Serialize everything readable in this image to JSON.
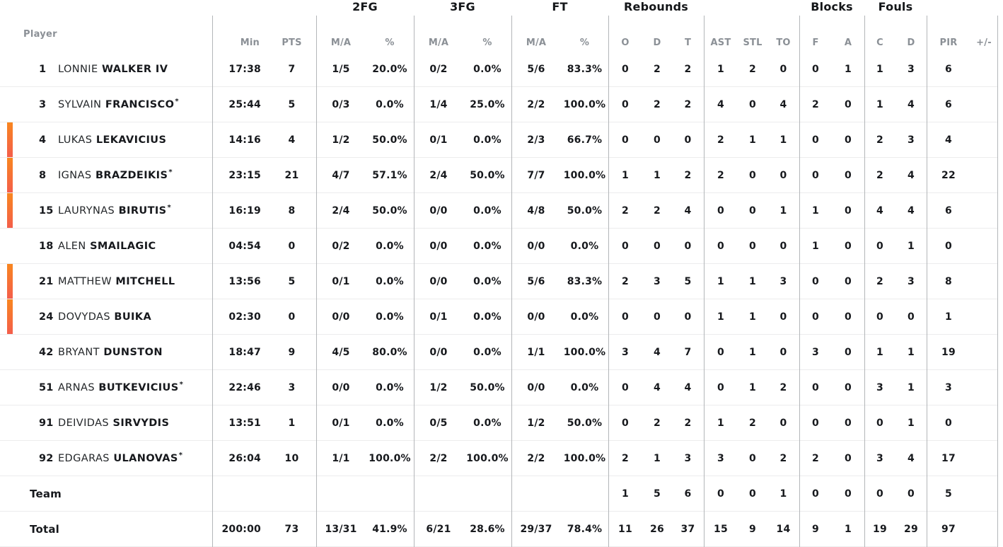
{
  "colors": {
    "accent_bar_top": "#f8861f",
    "accent_bar_bottom": "#f45e4b",
    "text_dark": "#17191d",
    "text_gray": "#8b9096",
    "divider_vertical": "#b3b6b9",
    "divider_horizontal": "#ececed"
  },
  "header": {
    "player_label": "Player",
    "groups": [
      {
        "label": "2FG"
      },
      {
        "label": "3FG"
      },
      {
        "label": "FT"
      },
      {
        "label": "Rebounds"
      },
      {
        "label": "Blocks"
      },
      {
        "label": "Fouls"
      }
    ],
    "stat_columns": [
      "Min",
      "PTS",
      "M/A",
      "%",
      "M/A",
      "%",
      "M/A",
      "%",
      "O",
      "D",
      "T",
      "AST",
      "STL",
      "TO",
      "F",
      "A",
      "C",
      "D",
      "PIR",
      "+/-"
    ]
  },
  "starter_marker": "*",
  "players": [
    {
      "number": "1",
      "first_name": "LONNIE",
      "last_name": "WALKER IV",
      "starter": false,
      "on_court": false,
      "stats": [
        "17:38",
        "7",
        "1/5",
        "20.0%",
        "0/2",
        "0.0%",
        "5/6",
        "83.3%",
        "0",
        "2",
        "2",
        "1",
        "2",
        "0",
        "0",
        "1",
        "1",
        "3",
        "6",
        ""
      ]
    },
    {
      "number": "3",
      "first_name": "SYLVAIN",
      "last_name": "FRANCISCO",
      "starter": true,
      "on_court": false,
      "stats": [
        "25:44",
        "5",
        "0/3",
        "0.0%",
        "1/4",
        "25.0%",
        "2/2",
        "100.0%",
        "0",
        "2",
        "2",
        "4",
        "0",
        "4",
        "2",
        "0",
        "1",
        "4",
        "6",
        ""
      ]
    },
    {
      "number": "4",
      "first_name": "LUKAS",
      "last_name": "LEKAVICIUS",
      "starter": false,
      "on_court": true,
      "stats": [
        "14:16",
        "4",
        "1/2",
        "50.0%",
        "0/1",
        "0.0%",
        "2/3",
        "66.7%",
        "0",
        "0",
        "0",
        "2",
        "1",
        "1",
        "0",
        "0",
        "2",
        "3",
        "4",
        ""
      ]
    },
    {
      "number": "8",
      "first_name": "IGNAS",
      "last_name": "BRAZDEIKIS",
      "starter": true,
      "on_court": true,
      "stats": [
        "23:15",
        "21",
        "4/7",
        "57.1%",
        "2/4",
        "50.0%",
        "7/7",
        "100.0%",
        "1",
        "1",
        "2",
        "2",
        "0",
        "0",
        "0",
        "0",
        "2",
        "4",
        "22",
        ""
      ]
    },
    {
      "number": "15",
      "first_name": "LAURYNAS",
      "last_name": "BIRUTIS",
      "starter": true,
      "on_court": true,
      "stats": [
        "16:19",
        "8",
        "2/4",
        "50.0%",
        "0/0",
        "0.0%",
        "4/8",
        "50.0%",
        "2",
        "2",
        "4",
        "0",
        "0",
        "1",
        "1",
        "0",
        "4",
        "4",
        "6",
        ""
      ]
    },
    {
      "number": "18",
      "first_name": "ALEN",
      "last_name": "SMAILAGIC",
      "starter": false,
      "on_court": false,
      "stats": [
        "04:54",
        "0",
        "0/2",
        "0.0%",
        "0/0",
        "0.0%",
        "0/0",
        "0.0%",
        "0",
        "0",
        "0",
        "0",
        "0",
        "0",
        "1",
        "0",
        "0",
        "1",
        "0",
        ""
      ]
    },
    {
      "number": "21",
      "first_name": "MATTHEW",
      "last_name": "MITCHELL",
      "starter": false,
      "on_court": true,
      "stats": [
        "13:56",
        "5",
        "0/1",
        "0.0%",
        "0/0",
        "0.0%",
        "5/6",
        "83.3%",
        "2",
        "3",
        "5",
        "1",
        "1",
        "3",
        "0",
        "0",
        "2",
        "3",
        "8",
        ""
      ]
    },
    {
      "number": "24",
      "first_name": "DOVYDAS",
      "last_name": "BUIKA",
      "starter": false,
      "on_court": true,
      "stats": [
        "02:30",
        "0",
        "0/0",
        "0.0%",
        "0/1",
        "0.0%",
        "0/0",
        "0.0%",
        "0",
        "0",
        "0",
        "1",
        "1",
        "0",
        "0",
        "0",
        "0",
        "0",
        "1",
        ""
      ]
    },
    {
      "number": "42",
      "first_name": "BRYANT",
      "last_name": "DUNSTON",
      "starter": false,
      "on_court": false,
      "stats": [
        "18:47",
        "9",
        "4/5",
        "80.0%",
        "0/0",
        "0.0%",
        "1/1",
        "100.0%",
        "3",
        "4",
        "7",
        "0",
        "1",
        "0",
        "3",
        "0",
        "1",
        "1",
        "19",
        ""
      ]
    },
    {
      "number": "51",
      "first_name": "ARNAS",
      "last_name": "BUTKEVICIUS",
      "starter": true,
      "on_court": false,
      "stats": [
        "22:46",
        "3",
        "0/0",
        "0.0%",
        "1/2",
        "50.0%",
        "0/0",
        "0.0%",
        "0",
        "4",
        "4",
        "0",
        "1",
        "2",
        "0",
        "0",
        "3",
        "1",
        "3",
        ""
      ]
    },
    {
      "number": "91",
      "first_name": "DEIVIDAS",
      "last_name": "SIRVYDIS",
      "starter": false,
      "on_court": false,
      "stats": [
        "13:51",
        "1",
        "0/1",
        "0.0%",
        "0/5",
        "0.0%",
        "1/2",
        "50.0%",
        "0",
        "2",
        "2",
        "1",
        "2",
        "0",
        "0",
        "0",
        "0",
        "1",
        "0",
        ""
      ]
    },
    {
      "number": "92",
      "first_name": "EDGARAS",
      "last_name": "ULANOVAS",
      "starter": true,
      "on_court": false,
      "stats": [
        "26:04",
        "10",
        "1/1",
        "100.0%",
        "2/2",
        "100.0%",
        "2/2",
        "100.0%",
        "2",
        "1",
        "3",
        "3",
        "0",
        "2",
        "2",
        "0",
        "3",
        "4",
        "17",
        ""
      ]
    }
  ],
  "team_row": {
    "label": "Team",
    "stats": [
      "",
      "",
      "",
      "",
      "",
      "",
      "",
      "",
      "1",
      "5",
      "6",
      "0",
      "0",
      "1",
      "0",
      "0",
      "0",
      "0",
      "5",
      ""
    ]
  },
  "total_row": {
    "label": "Total",
    "stats": [
      "200:00",
      "73",
      "13/31",
      "41.9%",
      "6/21",
      "28.6%",
      "29/37",
      "78.4%",
      "11",
      "26",
      "37",
      "15",
      "9",
      "14",
      "9",
      "1",
      "19",
      "29",
      "97",
      ""
    ]
  }
}
